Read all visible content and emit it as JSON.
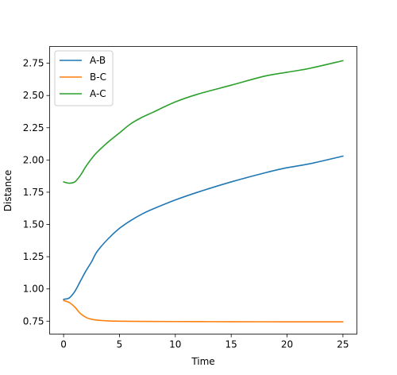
{
  "chart_data": {
    "type": "line",
    "title": "",
    "xlabel": "Time",
    "ylabel": "Distance",
    "xlim": [
      -1.25,
      26.25
    ],
    "ylim": [
      0.65,
      2.88
    ],
    "xticks": [
      0,
      5,
      10,
      15,
      20,
      25
    ],
    "xtick_labels": [
      "0",
      "5",
      "10",
      "15",
      "20",
      "25"
    ],
    "yticks": [
      0.75,
      1.0,
      1.25,
      1.5,
      1.75,
      2.0,
      2.25,
      2.5,
      2.75
    ],
    "ytick_labels": [
      "0.75",
      "1.00",
      "1.25",
      "1.50",
      "1.75",
      "2.00",
      "2.25",
      "2.50",
      "2.75"
    ],
    "grid": false,
    "legend_position": "upper-left",
    "series": [
      {
        "name": "A-B",
        "color": "#1f77b4",
        "x": [
          0,
          0.5,
          1,
          1.5,
          2,
          2.5,
          3,
          4,
          5,
          6,
          7,
          8,
          10,
          12,
          15,
          18,
          20,
          22,
          25
        ],
        "y": [
          0.92,
          0.93,
          0.98,
          1.06,
          1.14,
          1.21,
          1.29,
          1.39,
          1.47,
          1.53,
          1.58,
          1.62,
          1.69,
          1.75,
          1.83,
          1.9,
          1.94,
          1.97,
          2.03
        ]
      },
      {
        "name": "B-C",
        "color": "#ff7f0e",
        "x": [
          0,
          0.5,
          1,
          1.5,
          2,
          2.5,
          3,
          4,
          5,
          7,
          10,
          15,
          20,
          25
        ],
        "y": [
          0.91,
          0.895,
          0.86,
          0.81,
          0.78,
          0.765,
          0.758,
          0.752,
          0.75,
          0.748,
          0.747,
          0.746,
          0.745,
          0.745
        ]
      },
      {
        "name": "A-C",
        "color": "#2ca02c",
        "x": [
          0,
          0.5,
          1,
          1.5,
          2,
          2.5,
          3,
          4,
          5,
          6,
          7,
          8,
          10,
          12,
          15,
          18,
          20,
          22,
          25
        ],
        "y": [
          1.83,
          1.82,
          1.83,
          1.88,
          1.95,
          2.01,
          2.06,
          2.14,
          2.21,
          2.28,
          2.33,
          2.37,
          2.45,
          2.51,
          2.58,
          2.65,
          2.68,
          2.71,
          2.77
        ]
      }
    ]
  }
}
